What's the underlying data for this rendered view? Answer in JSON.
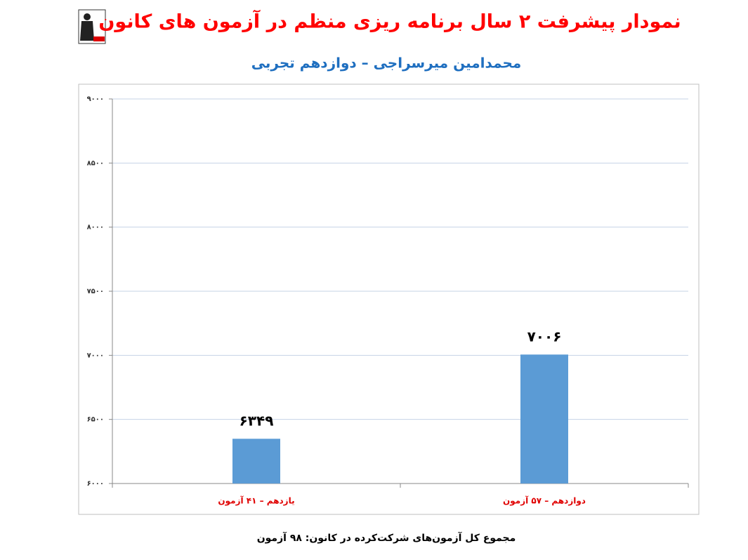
{
  "chart_data": {
    "type": "bar",
    "title": "نمودار پیشرفت ۲ سال برنامه ریزی منظم در آزمون های کانون",
    "subtitle": "محمدامین میرسراجی – دوازدهم تجربی",
    "categories": [
      "یازدهم – ۴۱ آزمون",
      "دوازدهم – ۵۷ آزمون"
    ],
    "values": [
      6349,
      7006
    ],
    "value_labels": [
      "۶۳۴۹",
      "۷۰۰۶"
    ],
    "color": "#5b9bd5",
    "ylim": [
      6000,
      9000
    ],
    "yticks": [
      {
        "value": 6000,
        "label": "۶۰۰۰"
      },
      {
        "value": 6500,
        "label": "۶۵۰۰"
      },
      {
        "value": 7000,
        "label": "۷۰۰۰"
      },
      {
        "value": 7500,
        "label": "۷۵۰۰"
      },
      {
        "value": 8000,
        "label": "۸۰۰۰"
      },
      {
        "value": 8500,
        "label": "۸۵۰۰"
      },
      {
        "value": 9000,
        "label": "۹۰۰۰"
      }
    ],
    "grid": true,
    "footer": "مجموع کل آزمون‌های شرکت‌کرده در کانون: ۹۸ آزمون"
  }
}
